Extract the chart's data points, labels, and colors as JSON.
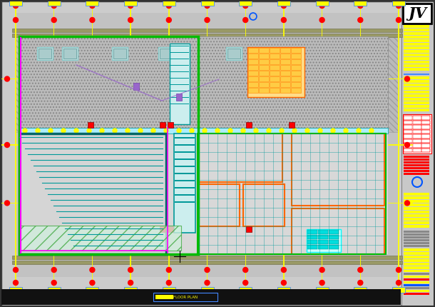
{
  "bg": "#c8c8c8",
  "panel_bg": "#c8c8c8",
  "yellow": "#FFFF00",
  "red": "#FF0000",
  "blue": "#0055FF",
  "cyan": "#00FFFF",
  "green": "#00BB00",
  "orange": "#FF6600",
  "magenta": "#FF00FF",
  "teal": "#009999",
  "dark_teal": "#007777",
  "logo_text": "JV",
  "fw": 6.1,
  "fh": 4.3,
  "dpi": 100
}
